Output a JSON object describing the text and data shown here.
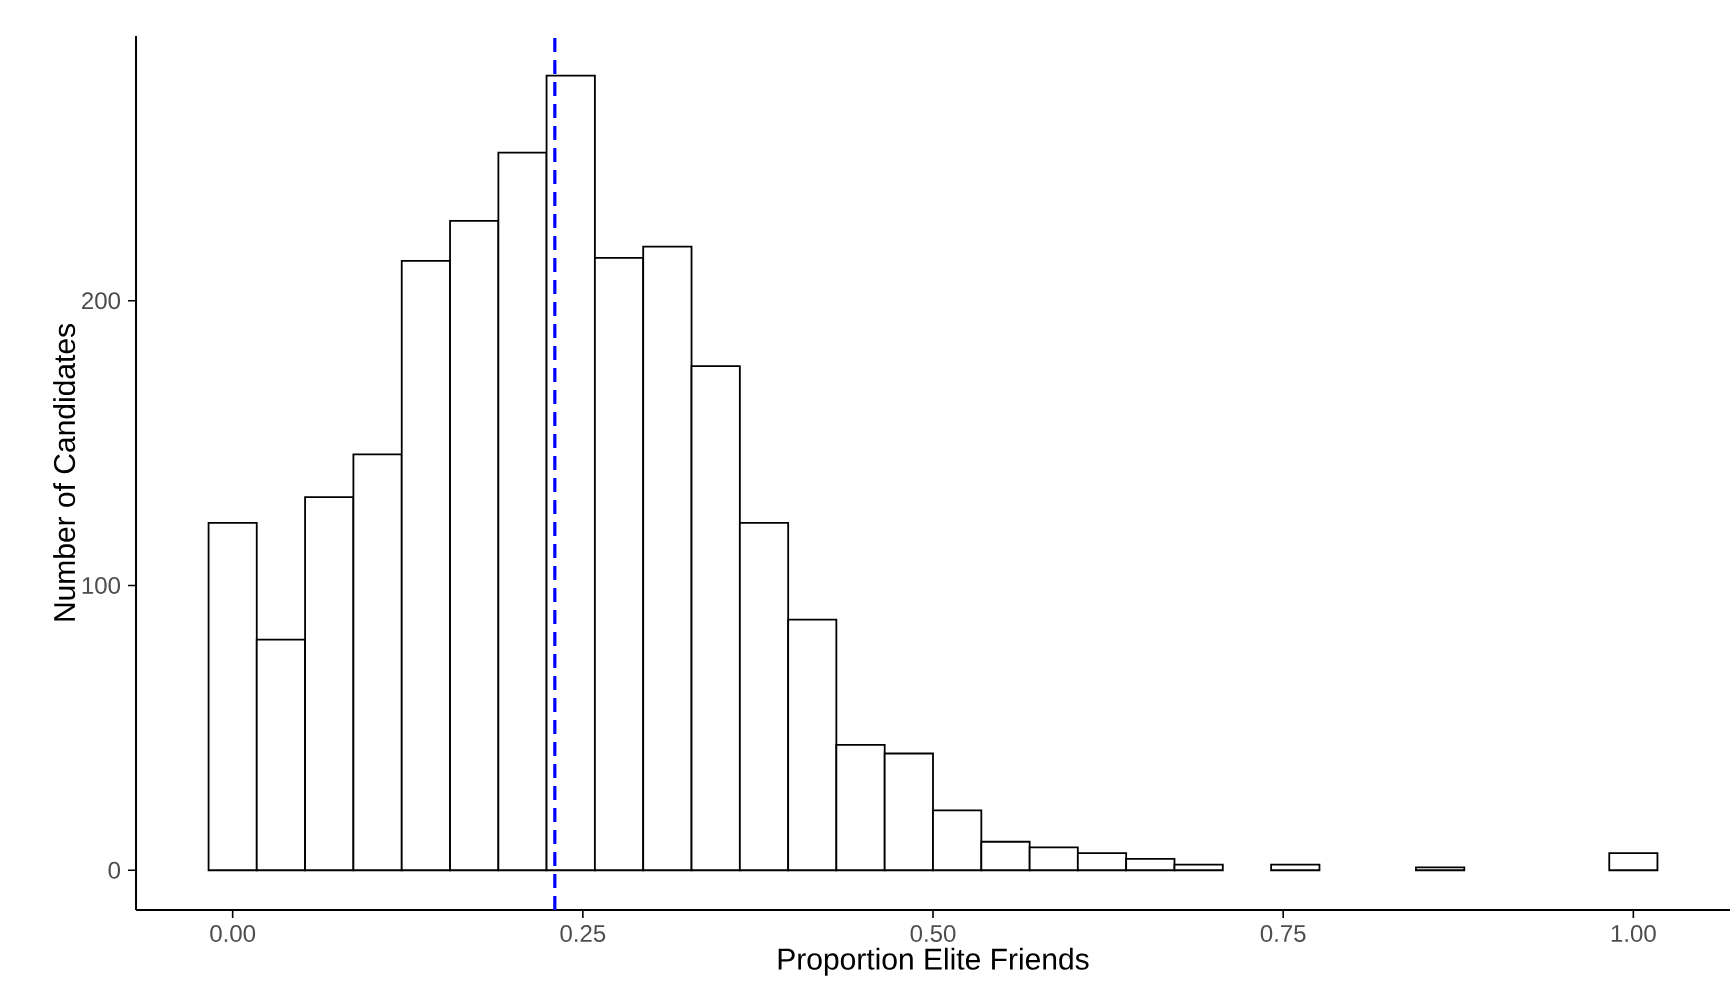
{
  "chart_data": {
    "type": "histogram",
    "xlabel": "Proportion Elite Friends",
    "ylabel": "Number of Candidates",
    "color": "#ffffff",
    "bins": [
      -0.0172,
      0.0172,
      0.0517,
      0.0862,
      0.1207,
      0.1552,
      0.1897,
      0.2241,
      0.2586,
      0.2931,
      0.3276,
      0.3621,
      0.3966,
      0.431,
      0.4655,
      0.5,
      0.5345,
      0.569,
      0.6034,
      0.6379,
      0.6724,
      0.7069,
      0.7414,
      0.7759,
      0.8103,
      0.8448,
      0.8793,
      0.9138,
      0.9483,
      0.9828,
      1.0172
    ],
    "values": [
      122,
      81,
      131,
      146,
      214,
      228,
      252,
      279,
      215,
      219,
      177,
      122,
      88,
      44,
      41,
      21,
      10,
      8,
      6,
      4,
      2,
      0,
      2,
      0,
      0,
      1,
      0,
      0,
      0,
      6
    ],
    "xlim": [
      -0.069,
      1.069
    ],
    "ylim": [
      -13.95,
      292.95
    ],
    "xticks": [
      {
        "value": 0,
        "label": "0.00"
      },
      {
        "value": 0.25,
        "label": "0.25"
      },
      {
        "value": 0.5,
        "label": "0.50"
      },
      {
        "value": 0.75,
        "label": "0.75"
      },
      {
        "value": 1,
        "label": "1.00"
      }
    ],
    "yticks": [
      0,
      100,
      200
    ],
    "ref_lines": [
      {
        "axis": "x",
        "value": 0.23,
        "color": "#0000ff",
        "line_style": "dashed"
      }
    ]
  }
}
